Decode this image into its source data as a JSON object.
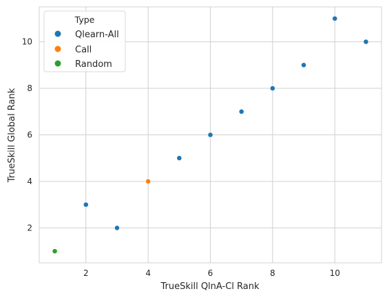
{
  "chart_data": {
    "type": "scatter",
    "xlabel": "TrueSkill QlnA-Cl Rank",
    "ylabel": "TrueSkill Global Rank",
    "xlim": [
      0.5,
      11.5
    ],
    "ylim": [
      0.5,
      11.5
    ],
    "xticks": [
      "2",
      "4",
      "6",
      "8",
      "10"
    ],
    "yticks": [
      "2",
      "4",
      "6",
      "8",
      "10"
    ],
    "grid": true,
    "legend": {
      "title": "Type",
      "placement": "top-left",
      "entries": [
        {
          "label": "Qlearn-All",
          "color": "#1f77b4"
        },
        {
          "label": "Call",
          "color": "#ff7f0e"
        },
        {
          "label": "Random",
          "color": "#2ca02c"
        }
      ]
    },
    "series": [
      {
        "name": "Qlearn-All",
        "color": "#1f77b4",
        "points": [
          [
            2,
            3
          ],
          [
            3,
            2
          ],
          [
            5,
            5
          ],
          [
            6,
            6
          ],
          [
            7,
            7
          ],
          [
            8,
            8
          ],
          [
            9,
            9
          ],
          [
            10,
            11
          ],
          [
            11,
            10
          ]
        ]
      },
      {
        "name": "Call",
        "color": "#ff7f0e",
        "points": [
          [
            4,
            4
          ]
        ]
      },
      {
        "name": "Random",
        "color": "#2ca02c",
        "points": [
          [
            1,
            1
          ]
        ]
      }
    ]
  }
}
